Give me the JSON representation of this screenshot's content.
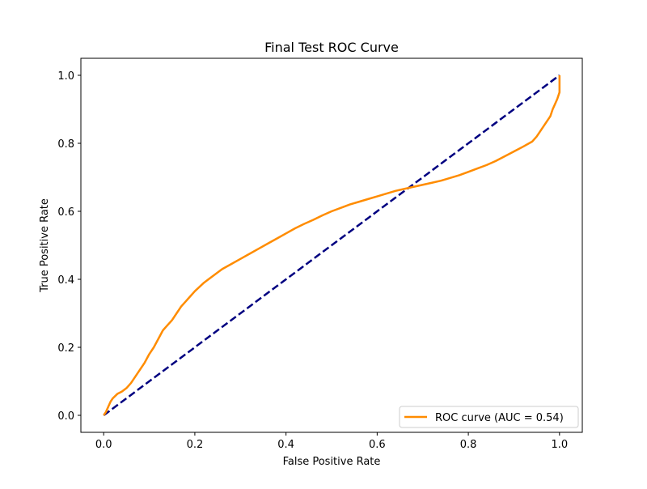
{
  "chart_data": {
    "type": "line",
    "title": "Final Test ROC Curve",
    "xlabel": "False Positive Rate",
    "ylabel": "True Positive Rate",
    "xlim": [
      -0.05,
      1.05
    ],
    "ylim": [
      -0.05,
      1.05
    ],
    "grid": false,
    "legend_position": "lower-right",
    "x_ticks": [
      "0.0",
      "0.2",
      "0.4",
      "0.6",
      "0.8",
      "1.0"
    ],
    "y_ticks": [
      "0.0",
      "0.2",
      "0.4",
      "0.6",
      "0.8",
      "1.0"
    ],
    "series": [
      {
        "name": "ROC curve (AUC = 0.54)",
        "color": "#ff8c00",
        "style": "solid",
        "x": [
          0.0,
          0.005,
          0.01,
          0.015,
          0.02,
          0.03,
          0.04,
          0.05,
          0.06,
          0.07,
          0.08,
          0.09,
          0.1,
          0.11,
          0.12,
          0.13,
          0.14,
          0.15,
          0.16,
          0.17,
          0.18,
          0.19,
          0.2,
          0.22,
          0.24,
          0.26,
          0.28,
          0.3,
          0.32,
          0.34,
          0.36,
          0.38,
          0.4,
          0.42,
          0.44,
          0.46,
          0.48,
          0.5,
          0.52,
          0.54,
          0.56,
          0.58,
          0.6,
          0.62,
          0.64,
          0.66,
          0.68,
          0.7,
          0.72,
          0.74,
          0.76,
          0.78,
          0.8,
          0.82,
          0.84,
          0.86,
          0.88,
          0.9,
          0.92,
          0.94,
          0.95,
          0.96,
          0.97,
          0.98,
          0.985,
          0.99,
          0.995,
          1.0,
          1.0
        ],
        "y": [
          0.0,
          0.01,
          0.025,
          0.04,
          0.05,
          0.063,
          0.07,
          0.08,
          0.095,
          0.115,
          0.135,
          0.155,
          0.18,
          0.2,
          0.225,
          0.25,
          0.265,
          0.28,
          0.3,
          0.32,
          0.335,
          0.35,
          0.365,
          0.39,
          0.41,
          0.43,
          0.445,
          0.46,
          0.475,
          0.49,
          0.505,
          0.52,
          0.535,
          0.55,
          0.563,
          0.575,
          0.588,
          0.6,
          0.61,
          0.62,
          0.628,
          0.636,
          0.644,
          0.652,
          0.66,
          0.666,
          0.672,
          0.678,
          0.684,
          0.69,
          0.698,
          0.706,
          0.716,
          0.726,
          0.736,
          0.748,
          0.762,
          0.776,
          0.79,
          0.805,
          0.82,
          0.84,
          0.86,
          0.88,
          0.9,
          0.915,
          0.93,
          0.95,
          1.0
        ]
      },
      {
        "name": "",
        "color": "#000080",
        "style": "dashed",
        "x": [
          0.0,
          1.0
        ],
        "y": [
          0.0,
          1.0
        ]
      }
    ],
    "legend": [
      {
        "label": "ROC curve (AUC = 0.54)",
        "color": "#ff8c00"
      }
    ]
  }
}
